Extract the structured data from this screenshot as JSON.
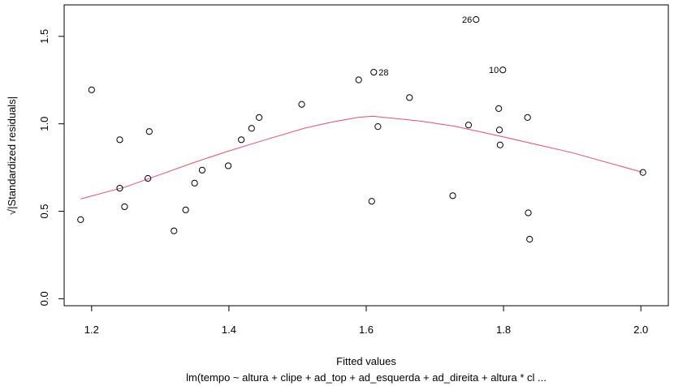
{
  "chart_data": {
    "type": "scatter",
    "xlabel": "Fitted values",
    "ylabel": "√|Standardized residuals|",
    "subtitle": "lm(tempo ~ altura + clipe + ad_top + ad_esquerda + ad_direita + altura * cl ...",
    "xlim": [
      1.16,
      2.04
    ],
    "ylim": [
      -0.04,
      1.68
    ],
    "x_ticks": [
      1.2,
      1.4,
      1.6,
      1.8,
      2.0
    ],
    "x_tick_labels": [
      "1.2",
      "1.4",
      "1.6",
      "1.8",
      "2.0"
    ],
    "y_ticks": [
      0.0,
      0.5,
      1.0,
      1.5
    ],
    "y_tick_labels": [
      "0.0",
      "0.5",
      "1.0",
      "1.5"
    ],
    "points": [
      {
        "x": 1.184,
        "y": 0.452
      },
      {
        "x": 1.2,
        "y": 1.194
      },
      {
        "x": 1.241,
        "y": 0.909
      },
      {
        "x": 1.241,
        "y": 0.632
      },
      {
        "x": 1.248,
        "y": 0.526
      },
      {
        "x": 1.282,
        "y": 0.688
      },
      {
        "x": 1.284,
        "y": 0.956
      },
      {
        "x": 1.32,
        "y": 0.388
      },
      {
        "x": 1.337,
        "y": 0.508
      },
      {
        "x": 1.35,
        "y": 0.661
      },
      {
        "x": 1.361,
        "y": 0.735
      },
      {
        "x": 1.399,
        "y": 0.76
      },
      {
        "x": 1.418,
        "y": 0.909
      },
      {
        "x": 1.433,
        "y": 0.974
      },
      {
        "x": 1.444,
        "y": 1.036
      },
      {
        "x": 1.506,
        "y": 1.111
      },
      {
        "x": 1.589,
        "y": 1.251
      },
      {
        "x": 1.608,
        "y": 0.557
      },
      {
        "x": 1.611,
        "y": 1.295,
        "label": "28"
      },
      {
        "x": 1.617,
        "y": 0.984
      },
      {
        "x": 1.663,
        "y": 1.15
      },
      {
        "x": 1.726,
        "y": 0.589
      },
      {
        "x": 1.749,
        "y": 0.993
      },
      {
        "x": 1.76,
        "y": 1.596,
        "label": "26"
      },
      {
        "x": 1.793,
        "y": 1.087
      },
      {
        "x": 1.794,
        "y": 0.965
      },
      {
        "x": 1.795,
        "y": 0.879
      },
      {
        "x": 1.799,
        "y": 1.308,
        "label": "10"
      },
      {
        "x": 1.835,
        "y": 1.036
      },
      {
        "x": 1.836,
        "y": 0.491
      },
      {
        "x": 1.838,
        "y": 0.34
      },
      {
        "x": 2.003,
        "y": 0.722
      }
    ],
    "smoother": {
      "x": [
        1.184,
        1.25,
        1.3,
        1.35,
        1.4,
        1.45,
        1.51,
        1.55,
        1.59,
        1.61,
        1.63,
        1.68,
        1.73,
        1.8,
        1.9,
        2.003
      ],
      "y": [
        0.57,
        0.64,
        0.71,
        0.78,
        0.845,
        0.905,
        0.975,
        1.01,
        1.038,
        1.043,
        1.035,
        1.015,
        0.985,
        0.925,
        0.835,
        0.722
      ],
      "color": "#DF536B"
    }
  }
}
